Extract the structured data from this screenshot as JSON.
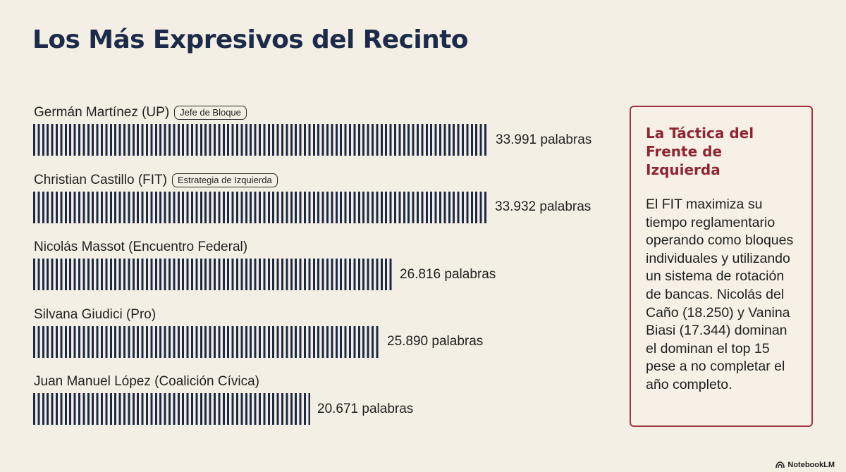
{
  "title": "Los Más Expresivos del Recinto",
  "chart_data": {
    "type": "bar",
    "orientation": "horizontal",
    "categories": [
      "Germán Martínez (UP)",
      "Christian Castillo (FIT)",
      "Nicolás Massot (Encuentro Federal)",
      "Silvana Giudici (Pro)",
      "Juan Manuel López (Coalición Cívica)"
    ],
    "values": [
      33991,
      33932,
      26816,
      25890,
      20671
    ],
    "value_labels": [
      "33.991 palabras",
      "33.932 palabras",
      "26.816 palabras",
      "25.890 palabras",
      "20.671 palabras"
    ],
    "badges": [
      "Jefe de Bloque",
      "Estrategia de Izquierda",
      "",
      "",
      ""
    ],
    "bar_color": "#1b2a47",
    "xlim": [
      0,
      33991
    ],
    "grid": false
  },
  "callout": {
    "title": "La Táctica del Frente de Izquierda",
    "body": "El FIT maximiza su tiempo reglamentario operando como bloques individuales y utilizando un sistema de rotación de bancas. Nicolás del Caño (18.250) y Vanina Biasi (17.344) dominan el dominan el top 15 pese a no completar el año completo."
  },
  "brand": {
    "label": "NotebookLM",
    "icon": "notebooklm-logo-icon"
  },
  "colors": {
    "background": "#f4efe4",
    "title": "#1b2b49",
    "accent": "#8f2533"
  }
}
